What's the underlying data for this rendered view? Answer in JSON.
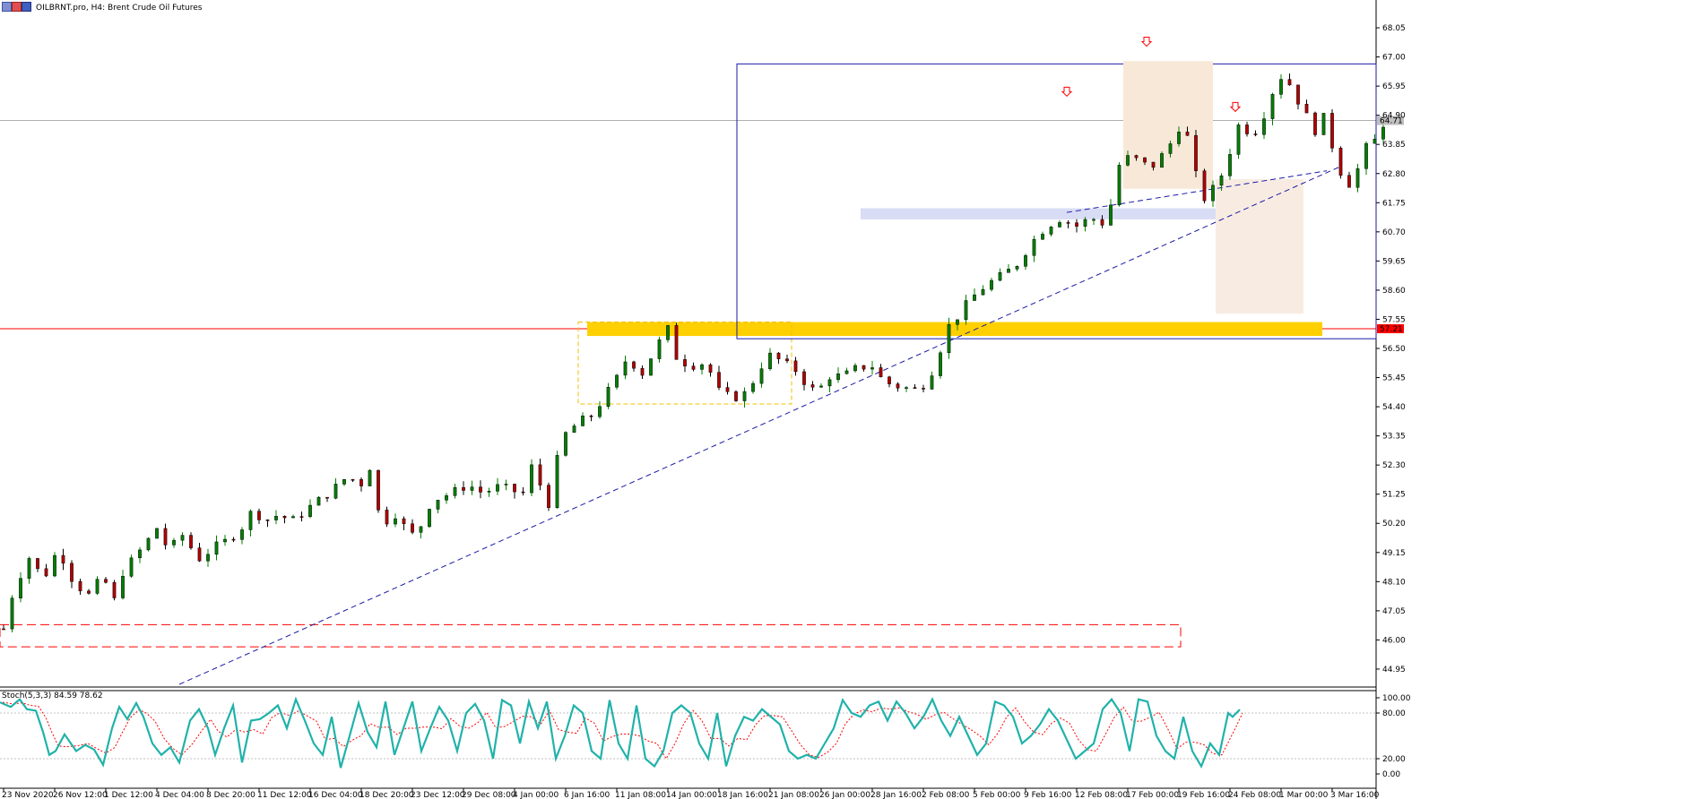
{
  "header": {
    "title": "OILBRNT.pro, H4:  Brent Crude Oil Futures",
    "oscillator_label": "Stoch(5,3,3) 84.59 78.62"
  },
  "colors": {
    "bull": "#008000",
    "bear": "#b20000",
    "trendline": "#1a1aa6",
    "box": "#1a1aa6",
    "support_zone": "#ffd000",
    "price_line": "#ff0000",
    "stoch_main": "#20b2aa",
    "stoch_signal": "#ff0000",
    "arrow": "#ff0000"
  },
  "chart_data": {
    "type": "candlestick",
    "symbol": "OILBRNT.pro",
    "timeframe": "H4",
    "ylim": [
      44.4,
      68.6
    ],
    "y_ticks": [
      "68.05",
      "67.00",
      "65.95",
      "64.90",
      "63.85",
      "62.80",
      "61.75",
      "60.70",
      "59.65",
      "58.60",
      "57.55",
      "56.50",
      "55.45",
      "54.40",
      "53.35",
      "52.30",
      "51.25",
      "50.20",
      "49.15",
      "48.10",
      "47.05",
      "46.00",
      "44.95"
    ],
    "x_ticks": [
      "23 Nov 2020",
      "26 Nov 12:00",
      "1 Dec 12:00",
      "4 Dec 04:00",
      "8 Dec 20:00",
      "11 Dec 12:00",
      "16 Dec 04:00",
      "18 Dec 20:00",
      "23 Dec 12:00",
      "29 Dec 08:00",
      "4 Jan 00:00",
      "6 Jan 16:00",
      "11 Jan 08:00",
      "14 Jan 00:00",
      "18 Jan 16:00",
      "21 Jan 08:00",
      "26 Jan 00:00",
      "28 Jan 16:00",
      "2 Feb 08:00",
      "5 Feb 00:00",
      "9 Feb 16:00",
      "12 Feb 08:00",
      "17 Feb 00:00",
      "19 Feb 16:00",
      "24 Feb 08:00",
      "1 Mar 00:00",
      "3 Mar 16:00"
    ],
    "current_price_label": "64.71",
    "current_price": 64.71,
    "level_label": "57.21",
    "level_price": 57.21,
    "close_path": [
      [
        0,
        46.4
      ],
      [
        10,
        47.8
      ],
      [
        25,
        49.0
      ],
      [
        40,
        48.2
      ],
      [
        55,
        49.3
      ],
      [
        70,
        48.1
      ],
      [
        85,
        47.6
      ],
      [
        100,
        48.3
      ],
      [
        110,
        47.3
      ],
      [
        120,
        48.5
      ],
      [
        130,
        48.9
      ],
      [
        145,
        49.6
      ],
      [
        155,
        50.1
      ],
      [
        165,
        49.2
      ],
      [
        180,
        49.8
      ],
      [
        195,
        48.9
      ],
      [
        210,
        49.3
      ],
      [
        225,
        49.6
      ],
      [
        240,
        50.1
      ],
      [
        250,
        50.7
      ],
      [
        262,
        50.3
      ],
      [
        275,
        50.5
      ],
      [
        290,
        50.3
      ],
      [
        300,
        50.6
      ],
      [
        315,
        51.0
      ],
      [
        330,
        51.4
      ],
      [
        345,
        51.9
      ],
      [
        358,
        51.6
      ],
      [
        368,
        52.3
      ],
      [
        372,
        51.0
      ],
      [
        380,
        50.2
      ],
      [
        395,
        50.6
      ],
      [
        405,
        49.8
      ],
      [
        415,
        49.8
      ],
      [
        425,
        50.8
      ],
      [
        435,
        51.1
      ],
      [
        450,
        51.3
      ],
      [
        465,
        51.6
      ],
      [
        480,
        51.3
      ],
      [
        495,
        51.5
      ],
      [
        510,
        51.4
      ],
      [
        520,
        51.2
      ],
      [
        530,
        52.3
      ],
      [
        540,
        51.4
      ],
      [
        548,
        50.8
      ],
      [
        555,
        52.5
      ],
      [
        563,
        53.4
      ],
      [
        575,
        53.8
      ],
      [
        590,
        54.1
      ],
      [
        605,
        54.9
      ],
      [
        618,
        55.6
      ],
      [
        625,
        56.2
      ],
      [
        640,
        55.6
      ],
      [
        655,
        56.6
      ],
      [
        668,
        57.3
      ],
      [
        675,
        56.1
      ],
      [
        690,
        55.9
      ],
      [
        705,
        56.0
      ],
      [
        715,
        55.0
      ],
      [
        730,
        54.7
      ],
      [
        745,
        54.9
      ],
      [
        760,
        55.9
      ],
      [
        770,
        56.3
      ],
      [
        780,
        56.0
      ],
      [
        795,
        55.7
      ],
      [
        805,
        55.2
      ],
      [
        815,
        54.9
      ],
      [
        828,
        55.5
      ],
      [
        842,
        55.5
      ],
      [
        856,
        55.8
      ],
      [
        870,
        55.9
      ],
      [
        882,
        55.3
      ],
      [
        900,
        55.1
      ],
      [
        915,
        55.0
      ],
      [
        925,
        55.3
      ],
      [
        935,
        56.0
      ],
      [
        945,
        57.2
      ],
      [
        955,
        57.6
      ],
      [
        970,
        58.3
      ],
      [
        985,
        58.8
      ],
      [
        1000,
        59.1
      ],
      [
        1015,
        59.5
      ],
      [
        1030,
        60.3
      ],
      [
        1045,
        60.9
      ],
      [
        1060,
        61.2
      ],
      [
        1075,
        60.9
      ],
      [
        1090,
        61.2
      ],
      [
        1103,
        61.0
      ],
      [
        1110,
        61.7
      ],
      [
        1115,
        62.5
      ],
      [
        1120,
        63.4
      ],
      [
        1135,
        63.3
      ],
      [
        1150,
        63.0
      ],
      [
        1165,
        63.6
      ],
      [
        1175,
        64.2
      ],
      [
        1182,
        64.8
      ],
      [
        1190,
        63.6
      ],
      [
        1196,
        62.6
      ],
      [
        1205,
        61.8
      ],
      [
        1215,
        62.4
      ],
      [
        1225,
        63.0
      ],
      [
        1235,
        64.4
      ],
      [
        1242,
        64.7
      ],
      [
        1250,
        64.1
      ],
      [
        1260,
        64.6
      ],
      [
        1270,
        65.6
      ],
      [
        1280,
        66.3
      ],
      [
        1290,
        66.0
      ],
      [
        1298,
        65.4
      ],
      [
        1310,
        64.6
      ],
      [
        1318,
        64.2
      ],
      [
        1325,
        65.0
      ],
      [
        1333,
        63.6
      ],
      [
        1342,
        62.7
      ],
      [
        1350,
        62.4
      ],
      [
        1358,
        63.0
      ],
      [
        1365,
        63.7
      ],
      [
        1375,
        64.0
      ],
      [
        1383,
        64.6
      ]
    ],
    "stoch_path": [
      [
        0,
        94
      ],
      [
        12,
        88
      ],
      [
        22,
        98
      ],
      [
        30,
        85
      ],
      [
        40,
        83
      ],
      [
        48,
        55
      ],
      [
        55,
        25
      ],
      [
        62,
        30
      ],
      [
        72,
        52
      ],
      [
        85,
        30
      ],
      [
        95,
        38
      ],
      [
        105,
        32
      ],
      [
        115,
        12
      ],
      [
        125,
        60
      ],
      [
        133,
        88
      ],
      [
        142,
        72
      ],
      [
        152,
        93
      ],
      [
        160,
        75
      ],
      [
        170,
        40
      ],
      [
        180,
        25
      ],
      [
        190,
        35
      ],
      [
        200,
        15
      ],
      [
        212,
        70
      ],
      [
        222,
        85
      ],
      [
        232,
        60
      ],
      [
        240,
        25
      ],
      [
        250,
        60
      ],
      [
        260,
        90
      ],
      [
        270,
        15
      ],
      [
        280,
        70
      ],
      [
        290,
        72
      ],
      [
        300,
        80
      ],
      [
        310,
        90
      ],
      [
        320,
        60
      ],
      [
        330,
        98
      ],
      [
        340,
        70
      ],
      [
        350,
        40
      ],
      [
        360,
        25
      ],
      [
        370,
        75
      ],
      [
        380,
        8
      ],
      [
        390,
        50
      ],
      [
        400,
        93
      ],
      [
        410,
        55
      ],
      [
        420,
        35
      ],
      [
        430,
        95
      ],
      [
        440,
        25
      ],
      [
        450,
        60
      ],
      [
        460,
        95
      ],
      [
        470,
        30
      ],
      [
        480,
        60
      ],
      [
        490,
        88
      ],
      [
        500,
        70
      ],
      [
        510,
        30
      ],
      [
        520,
        80
      ],
      [
        530,
        92
      ],
      [
        540,
        70
      ],
      [
        550,
        20
      ],
      [
        560,
        97
      ],
      [
        570,
        90
      ],
      [
        580,
        40
      ],
      [
        590,
        95
      ],
      [
        600,
        60
      ],
      [
        610,
        95
      ],
      [
        620,
        20
      ],
      [
        630,
        50
      ],
      [
        640,
        90
      ],
      [
        650,
        80
      ],
      [
        660,
        30
      ],
      [
        670,
        20
      ],
      [
        680,
        97
      ],
      [
        690,
        40
      ],
      [
        700,
        20
      ],
      [
        710,
        90
      ],
      [
        720,
        20
      ],
      [
        730,
        10
      ],
      [
        740,
        30
      ],
      [
        750,
        80
      ],
      [
        760,
        90
      ],
      [
        770,
        80
      ],
      [
        780,
        40
      ],
      [
        790,
        20
      ],
      [
        800,
        80
      ],
      [
        810,
        10
      ],
      [
        820,
        50
      ],
      [
        830,
        75
      ],
      [
        840,
        70
      ],
      [
        850,
        85
      ],
      [
        860,
        75
      ],
      [
        870,
        65
      ],
      [
        880,
        30
      ],
      [
        890,
        20
      ],
      [
        900,
        25
      ],
      [
        910,
        20
      ],
      [
        920,
        40
      ],
      [
        930,
        60
      ],
      [
        940,
        97
      ],
      [
        950,
        80
      ],
      [
        960,
        75
      ],
      [
        970,
        90
      ],
      [
        980,
        95
      ],
      [
        990,
        70
      ],
      [
        1000,
        95
      ],
      [
        1010,
        80
      ],
      [
        1020,
        60
      ],
      [
        1030,
        75
      ],
      [
        1040,
        98
      ],
      [
        1050,
        70
      ],
      [
        1060,
        50
      ],
      [
        1070,
        75
      ],
      [
        1080,
        50
      ],
      [
        1090,
        25
      ],
      [
        1100,
        40
      ],
      [
        1110,
        95
      ],
      [
        1120,
        90
      ],
      [
        1130,
        75
      ],
      [
        1140,
        40
      ],
      [
        1150,
        50
      ],
      [
        1160,
        65
      ],
      [
        1170,
        85
      ],
      [
        1180,
        70
      ],
      [
        1190,
        45
      ],
      [
        1200,
        20
      ],
      [
        1210,
        30
      ],
      [
        1220,
        40
      ],
      [
        1230,
        85
      ],
      [
        1240,
        98
      ],
      [
        1250,
        80
      ],
      [
        1260,
        30
      ],
      [
        1270,
        98
      ],
      [
        1280,
        95
      ],
      [
        1290,
        50
      ],
      [
        1300,
        30
      ],
      [
        1310,
        20
      ],
      [
        1320,
        75
      ],
      [
        1330,
        30
      ],
      [
        1340,
        10
      ],
      [
        1350,
        40
      ],
      [
        1360,
        25
      ],
      [
        1370,
        80
      ],
      [
        1375,
        75
      ],
      [
        1383,
        84.59
      ]
    ]
  }
}
